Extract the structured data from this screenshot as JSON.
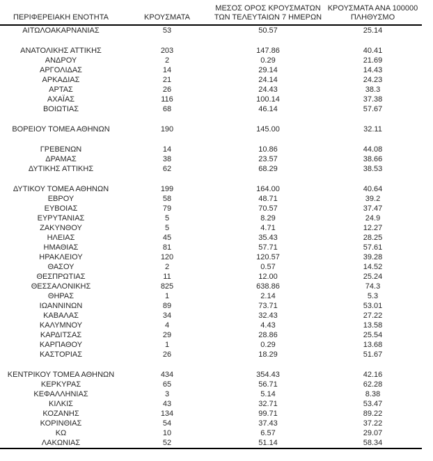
{
  "page": {
    "background_color": "#ffffff",
    "text_color": "#262626",
    "rule_color": "#000000"
  },
  "chart_data": {
    "type": "table",
    "columns": [
      "ΠΕΡΙΦΕΡΕΙΑΚΗ ΕΝΟΤΗΤΑ",
      "ΚΡΟΥΣΜΑΤΑ",
      "ΜΕΣΟΣ ΟΡΟΣ ΚΡΟΥΣΜΑΤΩΝ ΤΩΝ ΤΕΛΕΥΤΑΙΩΝ 7 ΗΜΕΡΩΝ",
      "ΚΡΟΥΣΜΑΤΑ ΑΝΑ 100000 ΠΛΗΘΥΣΜΟ"
    ],
    "groups": [
      [
        [
          "ΑΙΤΩΛΟΑΚΑΡΝΑΝΙΑΣ",
          "53",
          "50.57",
          "25.14"
        ]
      ],
      [
        [
          "ΑΝΑΤΟΛΙΚΗΣ ΑΤΤΙΚΗΣ",
          "203",
          "147.86",
          "40.41"
        ],
        [
          "ΑΝΔΡΟΥ",
          "2",
          "0.29",
          "21.69"
        ],
        [
          "ΑΡΓΟΛΙΔΑΣ",
          "14",
          "29.14",
          "14.43"
        ],
        [
          "ΑΡΚΑΔΙΑΣ",
          "21",
          "24.14",
          "24.23"
        ],
        [
          "ΑΡΤΑΣ",
          "26",
          "24.43",
          "38.3"
        ],
        [
          "ΑΧΑΪΑΣ",
          "116",
          "100.14",
          "37.38"
        ],
        [
          "ΒΟΙΩΤΙΑΣ",
          "68",
          "46.14",
          "57.67"
        ]
      ],
      [
        [
          "ΒΟΡΕΙΟΥ ΤΟΜΕΑ ΑΘΗΝΩΝ",
          "190",
          "145.00",
          "32.11"
        ]
      ],
      [
        [
          "ΓΡΕΒΕΝΩΝ",
          "14",
          "10.86",
          "44.08"
        ],
        [
          "ΔΡΑΜΑΣ",
          "38",
          "23.57",
          "38.66"
        ],
        [
          "ΔΥΤΙΚΗΣ ΑΤΤΙΚΗΣ",
          "62",
          "68.29",
          "38.53"
        ]
      ],
      [
        [
          "ΔΥΤΙΚΟΥ ΤΟΜΕΑ ΑΘΗΝΩΝ",
          "199",
          "164.00",
          "40.64"
        ],
        [
          "ΕΒΡΟΥ",
          "58",
          "48.71",
          "39.2"
        ],
        [
          "ΕΥΒΟΙΑΣ",
          "79",
          "70.57",
          "37.47"
        ],
        [
          "ΕΥΡΥΤΑΝΙΑΣ",
          "5",
          "8.29",
          "24.9"
        ],
        [
          "ΖΑΚΥΝΘΟΥ",
          "5",
          "4.71",
          "12.27"
        ],
        [
          "ΗΛΕΙΑΣ",
          "45",
          "35.43",
          "28.25"
        ],
        [
          "ΗΜΑΘΙΑΣ",
          "81",
          "57.71",
          "57.61"
        ],
        [
          "ΗΡΑΚΛΕΙΟΥ",
          "120",
          "120.57",
          "39.28"
        ],
        [
          "ΘΑΣΟΥ",
          "2",
          "0.57",
          "14.52"
        ],
        [
          "ΘΕΣΠΡΩΤΙΑΣ",
          "11",
          "12.00",
          "25.24"
        ],
        [
          "ΘΕΣΣΑΛΟΝΙΚΗΣ",
          "825",
          "638.86",
          "74.3"
        ],
        [
          "ΘΗΡΑΣ",
          "1",
          "2.14",
          "5.3"
        ],
        [
          "ΙΩΑΝΝΙΝΩΝ",
          "89",
          "73.71",
          "53.01"
        ],
        [
          "ΚΑΒΑΛΑΣ",
          "34",
          "32.43",
          "27.22"
        ],
        [
          "ΚΑΛΥΜΝΟΥ",
          "4",
          "4.43",
          "13.58"
        ],
        [
          "ΚΑΡΔΙΤΣΑΣ",
          "29",
          "28.86",
          "25.54"
        ],
        [
          "ΚΑΡΠΑΘΟΥ",
          "1",
          "0.29",
          "13.68"
        ],
        [
          "ΚΑΣΤΟΡΙΑΣ",
          "26",
          "18.29",
          "51.67"
        ]
      ],
      [
        [
          "ΚΕΝΤΡΙΚΟΥ ΤΟΜΕΑ ΑΘΗΝΩΝ",
          "434",
          "354.43",
          "42.16"
        ],
        [
          "ΚΕΡΚΥΡΑΣ",
          "65",
          "56.71",
          "62.28"
        ],
        [
          "ΚΕΦΑΛΛΗΝΙΑΣ",
          "3",
          "5.14",
          "8.38"
        ],
        [
          "ΚΙΛΚΙΣ",
          "43",
          "32.71",
          "53.47"
        ],
        [
          "ΚΟΖΑΝΗΣ",
          "134",
          "99.71",
          "89.22"
        ],
        [
          "ΚΟΡΙΝΘΙΑΣ",
          "54",
          "37.43",
          "37.22"
        ],
        [
          "ΚΩ",
          "10",
          "6.57",
          "29.07"
        ],
        [
          "ΛΑΚΩΝΙΑΣ",
          "52",
          "51.14",
          "58.34"
        ]
      ]
    ]
  },
  "table": {
    "header_lines": [
      [
        "ΠΕΡΙΦΕΡΕΙΑΚΗ ΕΝΟΤΗΤΑ"
      ],
      [
        "ΚΡΟΥΣΜΑΤΑ"
      ],
      [
        "ΜΕΣΟΣ ΟΡΟΣ ΚΡΟΥΣΜΑΤΩΝ",
        "ΤΩΝ ΤΕΛΕΥΤΑΙΩΝ 7 ΗΜΕΡΩΝ"
      ],
      [
        "ΚΡΟΥΣΜΑΤΑ ΑΝΑ 100000",
        "ΠΛΗΘΥΣΜΟ"
      ]
    ]
  }
}
